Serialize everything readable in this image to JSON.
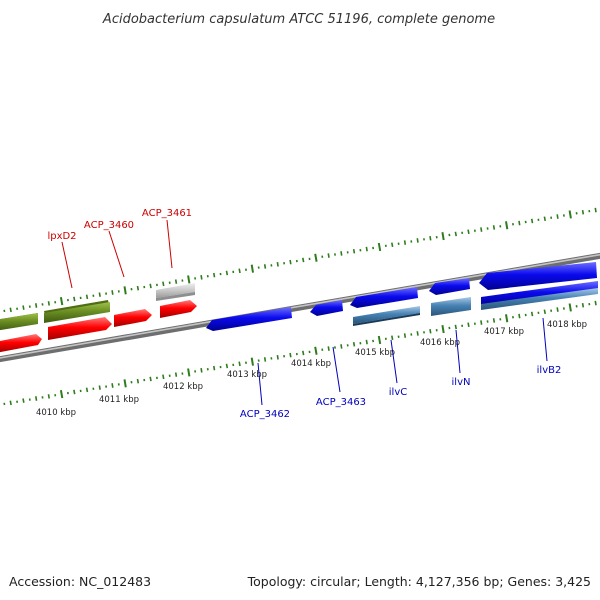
{
  "title": "Acidobacterium capsulatum ATCC 51196, complete genome",
  "footer": {
    "accession": "Accession: NC_012483",
    "topology": "Topology: circular; Length: 4,127,356 bp; Genes: 3,425"
  },
  "colors": {
    "backbone": "#8a8a8a",
    "tick": "#2e7d1c",
    "red_label": "#cc0000",
    "blue_label": "#0000bb",
    "green_gene": "#6b8e23",
    "red_gene": "#ff0000",
    "blue_gene": "#0000ee",
    "steel_gene": "#4682b4",
    "grey_gene": "#c8c8c8"
  },
  "kbp_labels": [
    "4010 kbp",
    "4011 kbp",
    "4012 kbp",
    "4013 kbp",
    "4014 kbp",
    "4015 kbp",
    "4016 kbp",
    "4017 kbp",
    "4018 kbp"
  ],
  "gene_labels": {
    "lpxD2": "lpxD2",
    "acp3460": "ACP_3460",
    "acp3461": "ACP_3461",
    "acp3462": "ACP_3462",
    "acp3463": "ACP_3463",
    "ilvC": "ilvC",
    "ilvN": "ilvN",
    "ilvB2": "ilvB2"
  }
}
